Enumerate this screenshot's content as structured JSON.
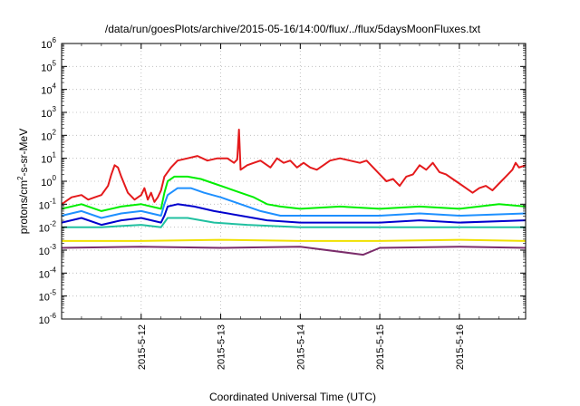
{
  "chart_data": {
    "type": "line",
    "title": "/data/run/goesPlots/archive/2015-05-16/14:00/flux/../flux/5daysMoonFluxes.txt",
    "xlabel": "Coordinated Universal Time (UTC)",
    "ylabel": {
      "prefix": "protons/cm",
      "superscript": "2",
      "suffix": "-s-sr-MeV"
    },
    "y_scale": "log",
    "ylim_exponent": [
      -6,
      6
    ],
    "y_ticks": [
      {
        "base": "10",
        "exp": "-6"
      },
      {
        "base": "10",
        "exp": "-5"
      },
      {
        "base": "10",
        "exp": "-4"
      },
      {
        "base": "10",
        "exp": "-3"
      },
      {
        "base": "10",
        "exp": "-2"
      },
      {
        "base": "10",
        "exp": "-1"
      },
      {
        "base": "10",
        "exp": "0"
      },
      {
        "base": "10",
        "exp": "1"
      },
      {
        "base": "10",
        "exp": "2"
      },
      {
        "base": "10",
        "exp": "3"
      },
      {
        "base": "10",
        "exp": "4"
      },
      {
        "base": "10",
        "exp": "5"
      },
      {
        "base": "10",
        "exp": "6"
      }
    ],
    "xlim": [
      "2015-05-11 00:00",
      "2015-05-16 20:00"
    ],
    "x_ticks": [
      "2015-5-12",
      "2015-5-13",
      "2015-5-14",
      "2015-5-15",
      "2015-5-16"
    ],
    "x_tick_dates": [
      "2015-05-12",
      "2015-05-13",
      "2015-05-14",
      "2015-05-15",
      "2015-05-16"
    ],
    "grid": true,
    "series": [
      {
        "color": "#e41a1c",
        "points": [
          [
            "2015-05-11 00:00",
            -1.0
          ],
          [
            "2015-05-11 03:00",
            -0.7
          ],
          [
            "2015-05-11 06:00",
            -0.6
          ],
          [
            "2015-05-11 08:00",
            -0.8
          ],
          [
            "2015-05-11 10:00",
            -0.7
          ],
          [
            "2015-05-11 12:00",
            -0.6
          ],
          [
            "2015-05-11 14:00",
            -0.2
          ],
          [
            "2015-05-11 15:00",
            0.3
          ],
          [
            "2015-05-11 16:00",
            0.7
          ],
          [
            "2015-05-11 17:00",
            0.6
          ],
          [
            "2015-05-11 18:00",
            0.2
          ],
          [
            "2015-05-11 20:00",
            -0.5
          ],
          [
            "2015-05-11 22:00",
            -0.8
          ],
          [
            "2015-05-12 00:00",
            -0.6
          ],
          [
            "2015-05-12 01:00",
            -0.3
          ],
          [
            "2015-05-12 02:00",
            -0.8
          ],
          [
            "2015-05-12 03:00",
            -0.5
          ],
          [
            "2015-05-12 04:00",
            -0.9
          ],
          [
            "2015-05-12 05:00",
            -0.7
          ],
          [
            "2015-05-12 06:00",
            -0.4
          ],
          [
            "2015-05-12 07:00",
            0.2
          ],
          [
            "2015-05-12 09:00",
            0.6
          ],
          [
            "2015-05-12 11:00",
            0.9
          ],
          [
            "2015-05-12 14:00",
            1.0
          ],
          [
            "2015-05-12 17:00",
            1.1
          ],
          [
            "2015-05-12 20:00",
            0.9
          ],
          [
            "2015-05-12 23:00",
            1.0
          ],
          [
            "2015-05-13 02:00",
            1.0
          ],
          [
            "2015-05-13 04:00",
            0.8
          ],
          [
            "2015-05-13 05:00",
            0.95
          ],
          [
            "2015-05-13 05:30",
            2.25
          ],
          [
            "2015-05-13 06:00",
            0.5
          ],
          [
            "2015-05-13 08:00",
            0.7
          ],
          [
            "2015-05-13 10:00",
            0.8
          ],
          [
            "2015-05-13 12:00",
            0.9
          ],
          [
            "2015-05-13 15:00",
            0.6
          ],
          [
            "2015-05-13 17:00",
            1.0
          ],
          [
            "2015-05-13 19:00",
            0.8
          ],
          [
            "2015-05-13 21:00",
            0.9
          ],
          [
            "2015-05-13 23:00",
            0.6
          ],
          [
            "2015-05-14 01:00",
            0.8
          ],
          [
            "2015-05-14 03:00",
            0.6
          ],
          [
            "2015-05-14 05:00",
            0.5
          ],
          [
            "2015-05-14 07:00",
            0.7
          ],
          [
            "2015-05-14 09:00",
            0.9
          ],
          [
            "2015-05-14 12:00",
            1.0
          ],
          [
            "2015-05-14 15:00",
            0.9
          ],
          [
            "2015-05-14 18:00",
            0.8
          ],
          [
            "2015-05-14 20:00",
            0.9
          ],
          [
            "2015-05-14 22:00",
            0.6
          ],
          [
            "2015-05-15 00:00",
            0.3
          ],
          [
            "2015-05-15 02:00",
            0.0
          ],
          [
            "2015-05-15 04:00",
            0.1
          ],
          [
            "2015-05-15 06:00",
            -0.2
          ],
          [
            "2015-05-15 08:00",
            0.2
          ],
          [
            "2015-05-15 10:00",
            0.3
          ],
          [
            "2015-05-15 12:00",
            0.7
          ],
          [
            "2015-05-15 14:00",
            0.5
          ],
          [
            "2015-05-15 16:00",
            0.8
          ],
          [
            "2015-05-15 18:00",
            0.4
          ],
          [
            "2015-05-15 20:00",
            0.3
          ],
          [
            "2015-05-15 22:00",
            0.1
          ],
          [
            "2015-05-16 00:00",
            -0.1
          ],
          [
            "2015-05-16 02:00",
            -0.3
          ],
          [
            "2015-05-16 04:00",
            -0.5
          ],
          [
            "2015-05-16 06:00",
            -0.3
          ],
          [
            "2015-05-16 08:00",
            -0.2
          ],
          [
            "2015-05-16 10:00",
            -0.4
          ],
          [
            "2015-05-16 12:00",
            -0.1
          ],
          [
            "2015-05-16 14:00",
            0.2
          ],
          [
            "2015-05-16 16:00",
            0.5
          ],
          [
            "2015-05-16 17:00",
            0.8
          ],
          [
            "2015-05-16 18:00",
            0.6
          ],
          [
            "2015-05-16 20:00",
            0.7
          ]
        ]
      },
      {
        "color": "#00ee00",
        "points": [
          [
            "2015-05-11 00:00",
            -1.2
          ],
          [
            "2015-05-11 06:00",
            -1.0
          ],
          [
            "2015-05-11 12:00",
            -1.3
          ],
          [
            "2015-05-11 18:00",
            -1.1
          ],
          [
            "2015-05-12 00:00",
            -1.0
          ],
          [
            "2015-05-12 06:00",
            -1.2
          ],
          [
            "2015-05-12 07:00",
            -0.5
          ],
          [
            "2015-05-12 08:00",
            0.0
          ],
          [
            "2015-05-12 10:00",
            0.2
          ],
          [
            "2015-05-12 14:00",
            0.2
          ],
          [
            "2015-05-12 18:00",
            0.1
          ],
          [
            "2015-05-12 22:00",
            -0.1
          ],
          [
            "2015-05-13 02:00",
            -0.3
          ],
          [
            "2015-05-13 06:00",
            -0.5
          ],
          [
            "2015-05-13 10:00",
            -0.7
          ],
          [
            "2015-05-13 14:00",
            -1.0
          ],
          [
            "2015-05-13 18:00",
            -1.1
          ],
          [
            "2015-05-14 00:00",
            -1.2
          ],
          [
            "2015-05-14 12:00",
            -1.1
          ],
          [
            "2015-05-15 00:00",
            -1.2
          ],
          [
            "2015-05-15 12:00",
            -1.1
          ],
          [
            "2015-05-16 00:00",
            -1.2
          ],
          [
            "2015-05-16 12:00",
            -1.0
          ],
          [
            "2015-05-16 20:00",
            -1.1
          ]
        ]
      },
      {
        "color": "#1e90ff",
        "points": [
          [
            "2015-05-11 00:00",
            -1.5
          ],
          [
            "2015-05-11 06:00",
            -1.3
          ],
          [
            "2015-05-11 12:00",
            -1.6
          ],
          [
            "2015-05-11 18:00",
            -1.4
          ],
          [
            "2015-05-12 00:00",
            -1.3
          ],
          [
            "2015-05-12 06:00",
            -1.5
          ],
          [
            "2015-05-12 07:00",
            -1.0
          ],
          [
            "2015-05-12 08:00",
            -0.6
          ],
          [
            "2015-05-12 11:00",
            -0.3
          ],
          [
            "2015-05-12 15:00",
            -0.3
          ],
          [
            "2015-05-12 19:00",
            -0.5
          ],
          [
            "2015-05-13 00:00",
            -0.7
          ],
          [
            "2015-05-13 06:00",
            -1.0
          ],
          [
            "2015-05-13 12:00",
            -1.3
          ],
          [
            "2015-05-13 18:00",
            -1.5
          ],
          [
            "2015-05-14 06:00",
            -1.5
          ],
          [
            "2015-05-15 00:00",
            -1.5
          ],
          [
            "2015-05-15 12:00",
            -1.4
          ],
          [
            "2015-05-16 00:00",
            -1.5
          ],
          [
            "2015-05-16 20:00",
            -1.4
          ]
        ]
      },
      {
        "color": "#0000cd",
        "points": [
          [
            "2015-05-11 00:00",
            -1.8
          ],
          [
            "2015-05-11 06:00",
            -1.6
          ],
          [
            "2015-05-11 12:00",
            -1.9
          ],
          [
            "2015-05-11 18:00",
            -1.7
          ],
          [
            "2015-05-12 00:00",
            -1.6
          ],
          [
            "2015-05-12 06:00",
            -1.8
          ],
          [
            "2015-05-12 07:00",
            -1.5
          ],
          [
            "2015-05-12 08:00",
            -1.1
          ],
          [
            "2015-05-12 11:00",
            -1.0
          ],
          [
            "2015-05-12 16:00",
            -1.1
          ],
          [
            "2015-05-12 22:00",
            -1.3
          ],
          [
            "2015-05-13 06:00",
            -1.5
          ],
          [
            "2015-05-13 14:00",
            -1.7
          ],
          [
            "2015-05-14 00:00",
            -1.8
          ],
          [
            "2015-05-15 00:00",
            -1.8
          ],
          [
            "2015-05-15 12:00",
            -1.7
          ],
          [
            "2015-05-16 00:00",
            -1.8
          ],
          [
            "2015-05-16 20:00",
            -1.7
          ]
        ]
      },
      {
        "color": "#20c0a0",
        "points": [
          [
            "2015-05-11 00:00",
            -2.0
          ],
          [
            "2015-05-11 12:00",
            -2.0
          ],
          [
            "2015-05-12 00:00",
            -1.9
          ],
          [
            "2015-05-12 06:00",
            -2.0
          ],
          [
            "2015-05-12 08:00",
            -1.6
          ],
          [
            "2015-05-12 14:00",
            -1.6
          ],
          [
            "2015-05-12 22:00",
            -1.8
          ],
          [
            "2015-05-13 08:00",
            -1.9
          ],
          [
            "2015-05-14 00:00",
            -2.0
          ],
          [
            "2015-05-15 00:00",
            -2.0
          ],
          [
            "2015-05-16 00:00",
            -2.0
          ],
          [
            "2015-05-16 20:00",
            -2.0
          ]
        ]
      },
      {
        "color": "#f0e000",
        "points": [
          [
            "2015-05-11 00:00",
            -2.6
          ],
          [
            "2015-05-12 00:00",
            -2.6
          ],
          [
            "2015-05-13 00:00",
            -2.55
          ],
          [
            "2015-05-14 00:00",
            -2.6
          ],
          [
            "2015-05-15 00:00",
            -2.6
          ],
          [
            "2015-05-16 00:00",
            -2.55
          ],
          [
            "2015-05-16 20:00",
            -2.6
          ]
        ]
      },
      {
        "color": "#7b2d6b",
        "points": [
          [
            "2015-05-11 00:00",
            -2.9
          ],
          [
            "2015-05-12 00:00",
            -2.85
          ],
          [
            "2015-05-13 00:00",
            -2.9
          ],
          [
            "2015-05-14 00:00",
            -2.85
          ],
          [
            "2015-05-14 19:00",
            -3.2
          ],
          [
            "2015-05-15 00:00",
            -2.9
          ],
          [
            "2015-05-16 00:00",
            -2.85
          ],
          [
            "2015-05-16 20:00",
            -2.9
          ]
        ]
      }
    ]
  }
}
